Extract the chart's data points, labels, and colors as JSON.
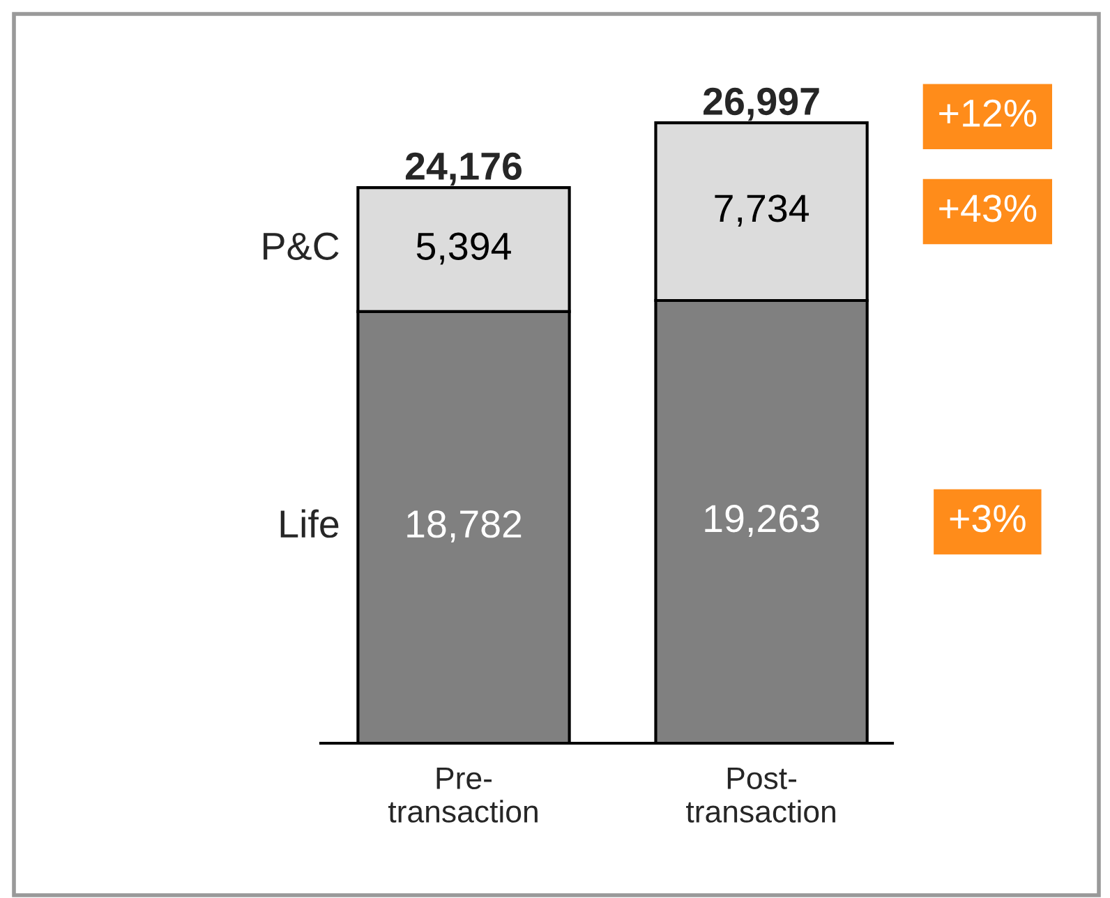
{
  "chart_data": {
    "type": "bar",
    "stacked": true,
    "categories": [
      "Pre-\ntransaction",
      "Post-\ntransaction"
    ],
    "series": [
      {
        "name": "Life",
        "color": "#808080",
        "values": [
          18782,
          19263
        ],
        "value_labels": [
          "18,782",
          "19,263"
        ]
      },
      {
        "name": "P&C",
        "color": "#dcdcdc",
        "values": [
          5394,
          7734
        ],
        "value_labels": [
          "5,394",
          "7,734"
        ]
      }
    ],
    "totals": [
      "24,176",
      "26,997"
    ],
    "annotations": [
      "+12%",
      "+43%",
      "+3%"
    ],
    "legend": false,
    "grid": false
  }
}
